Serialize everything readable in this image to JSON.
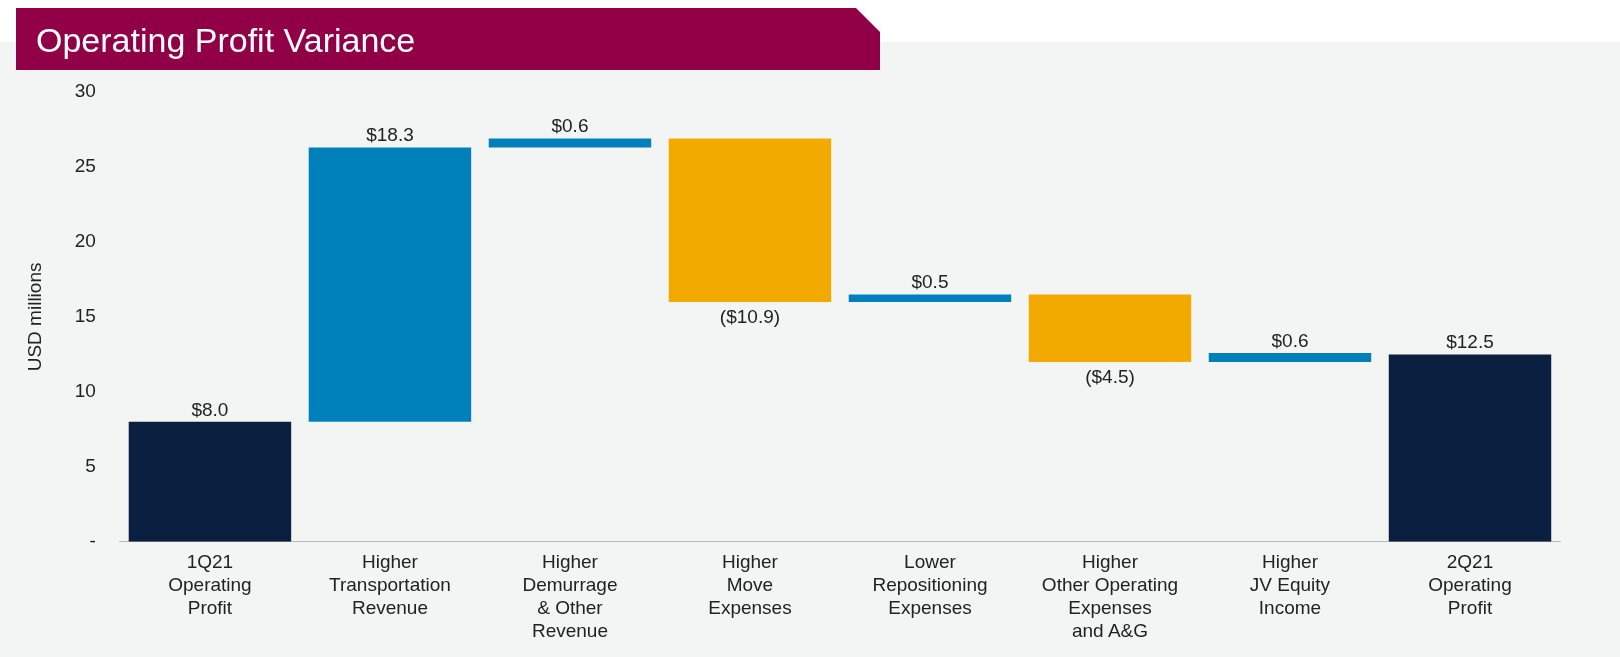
{
  "chart_data": {
    "type": "bar",
    "title": "Operating Profit Variance",
    "ylabel": "USD millions",
    "categories": [
      "1Q21\nOperating\nProfit",
      "Higher\nTransportation\nRevenue",
      "Higher\nDemurrage\n& Other\nRevenue",
      "Higher\nMove\nExpenses",
      "Lower\nRepositioning\nExpenses",
      "Higher\nOther Operating\nExpenses\nand A&G",
      "Higher\nJV Equity\nIncome",
      "2Q21\nOperating\nProfit"
    ],
    "values": [
      8.0,
      18.3,
      0.6,
      -10.9,
      0.5,
      -4.5,
      0.6,
      12.5
    ],
    "base": [
      0,
      8.0,
      26.3,
      26.9,
      16.0,
      16.5,
      12.0,
      0
    ],
    "colors": [
      "#0b1f41",
      "#0080bb",
      "#0080bb",
      "#f2aa00",
      "#0080bb",
      "#f2aa00",
      "#0080bb",
      "#0b1f41"
    ],
    "value_labels": [
      "$8.0",
      "$18.3",
      "$0.6",
      "($10.9)",
      "$0.5",
      "($4.5)",
      "$0.6",
      "$12.5"
    ],
    "ylim": [
      0,
      30
    ],
    "yticks": [
      {
        "value": 0,
        "label": "-"
      },
      5,
      10,
      15,
      20,
      25,
      30
    ],
    "grid": false,
    "legend": false
  }
}
